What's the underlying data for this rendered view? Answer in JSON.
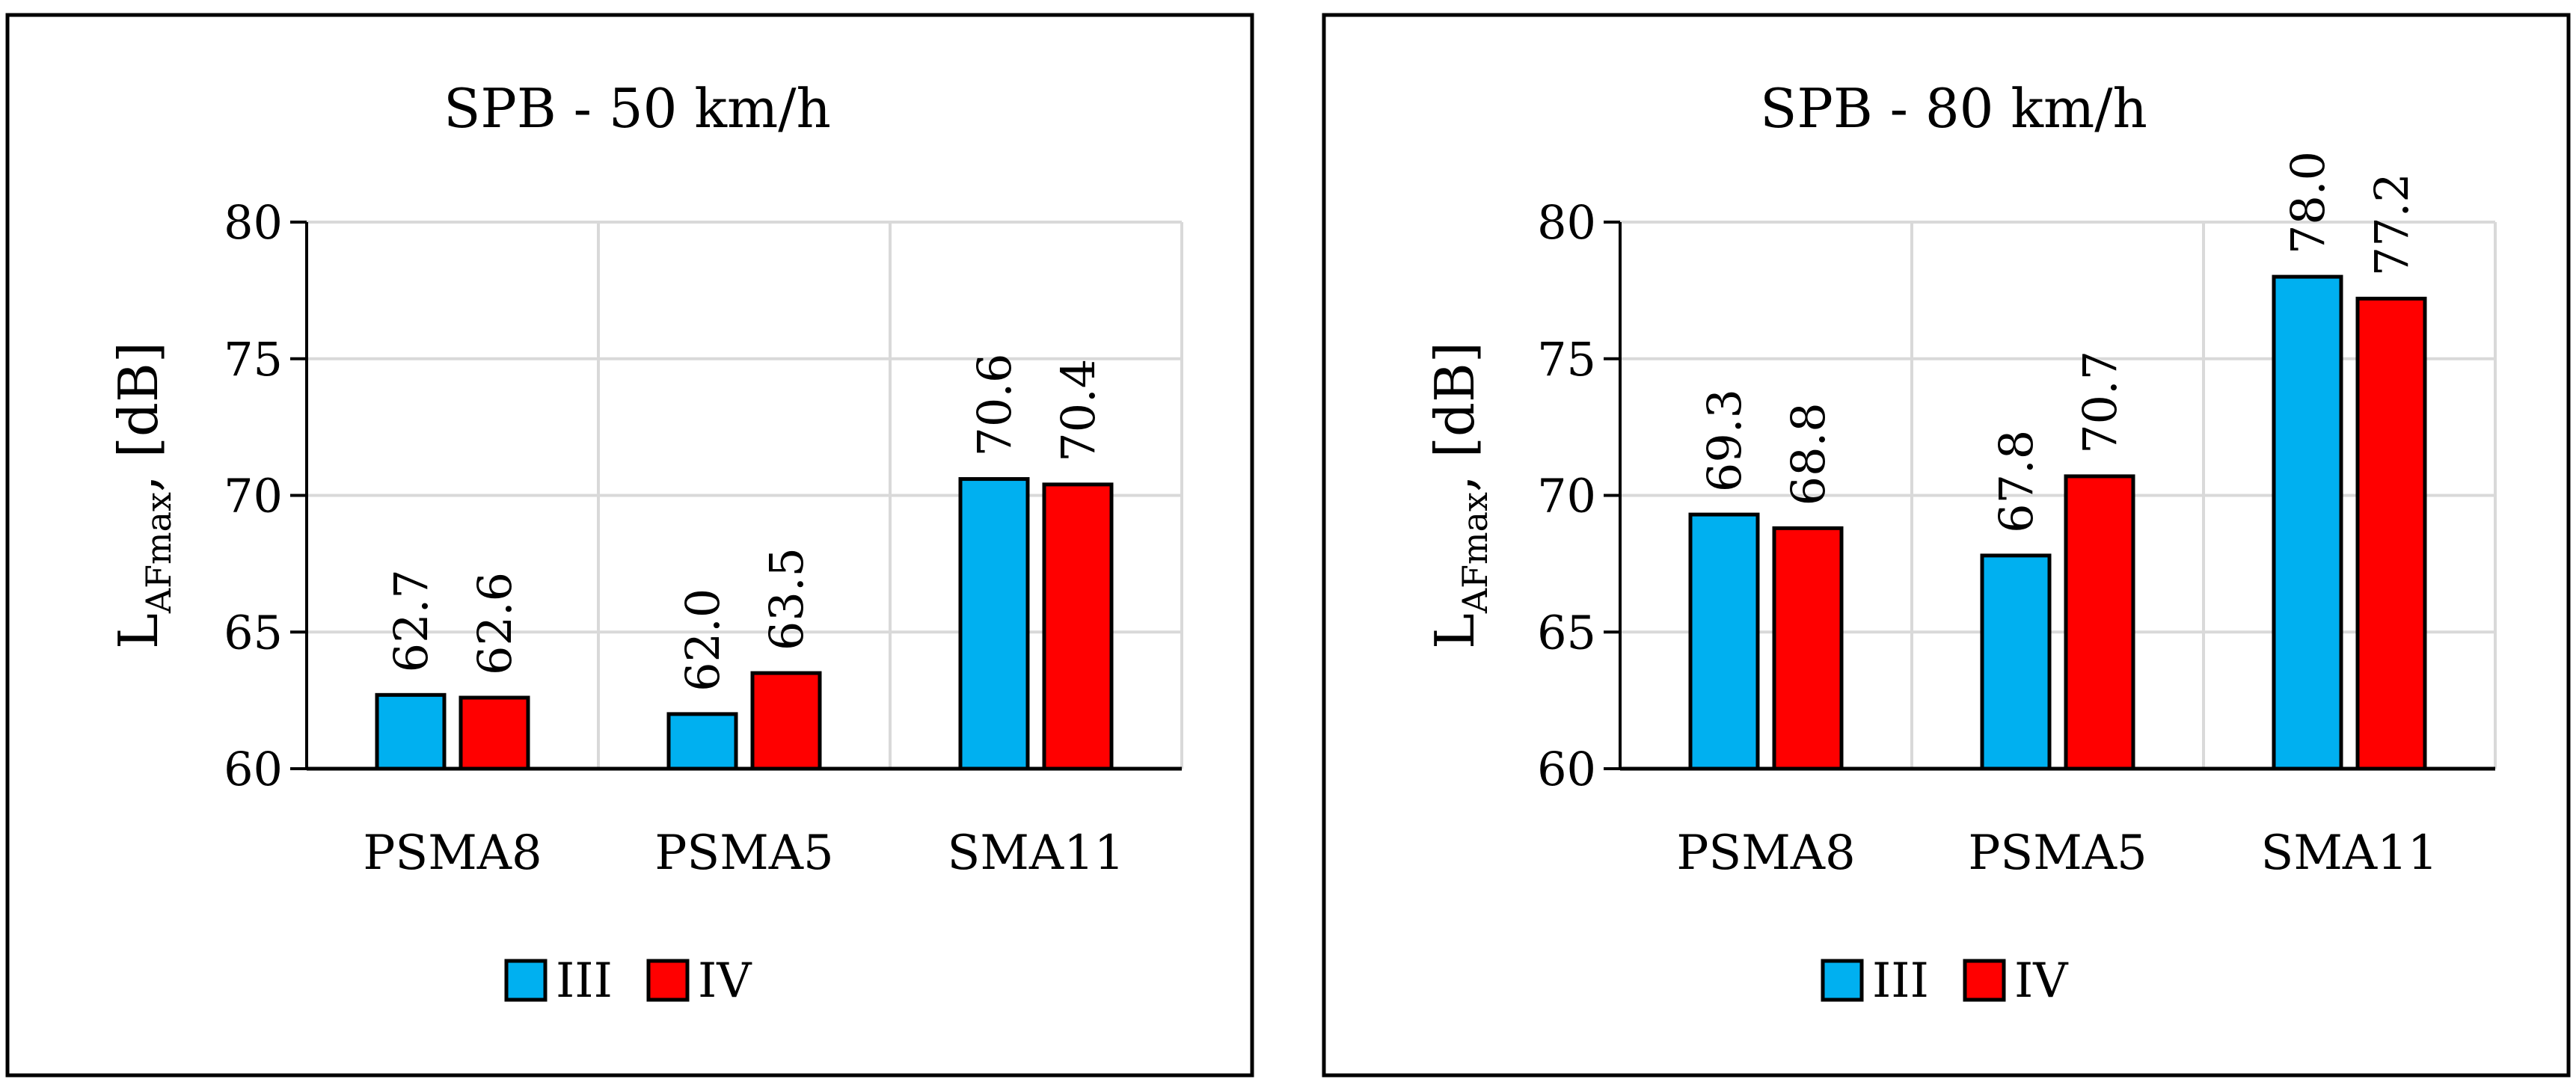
{
  "colors": {
    "series_iii": "#00B0F0",
    "series_iv": "#FF0000",
    "gridline": "#D9D9D9",
    "outline": "#000000"
  },
  "chart_data": [
    {
      "type": "bar",
      "title": "SPB - 50 km/h",
      "ylabel": {
        "main": "L",
        "subscript": "AFmax",
        "suffix": ", [dB]"
      },
      "xlabel": "",
      "ylim": [
        60,
        80
      ],
      "yticks": [
        60,
        65,
        70,
        75,
        80
      ],
      "categories": [
        "PSMA8",
        "PSMA5",
        "SMA11"
      ],
      "series": [
        {
          "name": "III",
          "values": [
            62.7,
            62.0,
            70.6
          ],
          "labels": [
            "62.7",
            "62.0",
            "70.6"
          ]
        },
        {
          "name": "IV",
          "values": [
            62.6,
            63.5,
            70.4
          ],
          "labels": [
            "62.6",
            "63.5",
            "70.4"
          ]
        }
      ],
      "grid": true,
      "legend": "bottom-center"
    },
    {
      "type": "bar",
      "title": "SPB - 80 km/h",
      "ylabel": {
        "main": "L",
        "subscript": "AFmax",
        "suffix": ", [dB]"
      },
      "xlabel": "",
      "ylim": [
        60,
        80
      ],
      "yticks": [
        60,
        65,
        70,
        75,
        80
      ],
      "categories": [
        "PSMA8",
        "PSMA5",
        "SMA11"
      ],
      "series": [
        {
          "name": "III",
          "values": [
            69.3,
            67.8,
            78.0
          ],
          "labels": [
            "69.3",
            "67.8",
            "78.0"
          ]
        },
        {
          "name": "IV",
          "values": [
            68.8,
            70.7,
            77.2
          ],
          "labels": [
            "68.8",
            "70.7",
            "77.2"
          ]
        }
      ],
      "grid": true,
      "legend": "bottom-center"
    }
  ]
}
